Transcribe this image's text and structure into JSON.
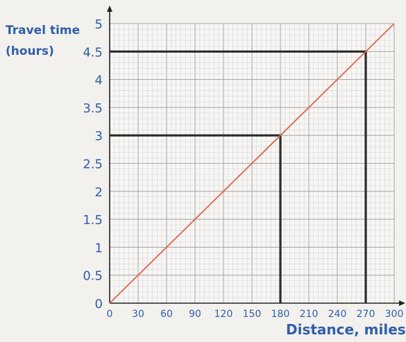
{
  "chart_data": {
    "type": "line",
    "ylabel_lines": [
      "Travel time",
      "(hours)"
    ],
    "xlabel": "Distance, miles",
    "xlim": [
      0,
      300
    ],
    "ylim": [
      0,
      5
    ],
    "x_ticks": [
      0,
      30,
      60,
      90,
      120,
      150,
      180,
      210,
      240,
      270,
      300
    ],
    "y_ticks": [
      "0",
      "0.5",
      "1",
      "1.5",
      "2",
      "2.5",
      "3",
      "3.5",
      "4",
      "4.5",
      "5"
    ],
    "grid": true,
    "series": [
      {
        "x": [
          0,
          300
        ],
        "y": [
          0,
          5
        ],
        "color": "#e0624a"
      }
    ],
    "reference_lines": [
      {
        "x": 180,
        "y": 3
      },
      {
        "x": 270,
        "y": 4.5
      }
    ],
    "colors": {
      "axis_text": "#2f5fa8",
      "line": "#e0624a",
      "reference": "#2a2a2a",
      "grid_minor": "#d6d6d6",
      "grid_major": "#a9a9a9"
    }
  }
}
